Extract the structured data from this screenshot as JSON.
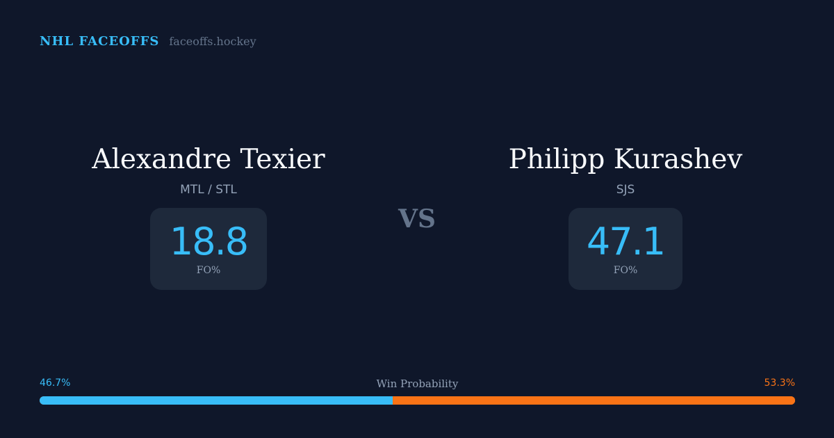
{
  "header": {
    "brand": "NHL FACEOFFS",
    "site": "faceoffs.hockey"
  },
  "players": [
    {
      "name": "Alexandre Texier",
      "team": "MTL / STL",
      "value": "18.8",
      "label": "FO%"
    },
    {
      "name": "Philipp Kurashev",
      "team": "SJS",
      "value": "47.1",
      "label": "FO%"
    }
  ],
  "vs": "VS",
  "win_probability": {
    "title": "Win Probability",
    "left_label": "46.7%",
    "right_label": "53.3%",
    "left_percent": 46.7,
    "right_percent": 53.3
  },
  "colors": {
    "background": "#0f172a",
    "card": "#1e293b",
    "left_accent": "#38bdf8",
    "right_accent": "#f97316",
    "muted": "#94a3b8"
  }
}
